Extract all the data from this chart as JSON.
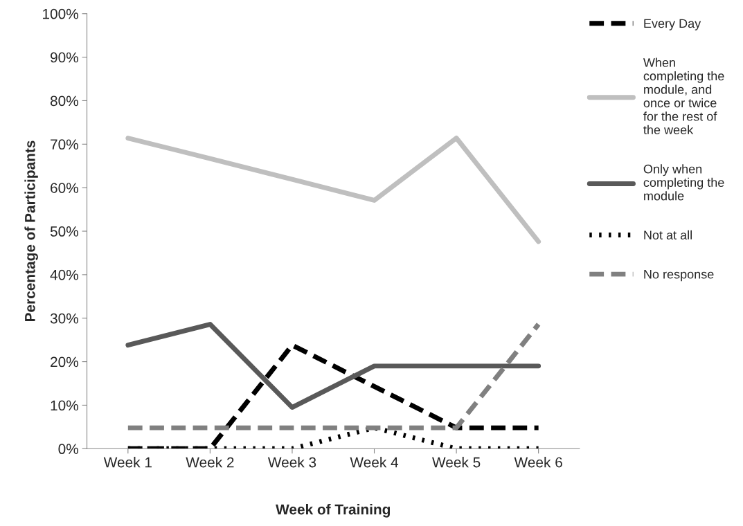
{
  "chart_data": {
    "type": "line",
    "xlabel": "Week of Training",
    "ylabel": "Percentage of Participants",
    "categories": [
      "Week 1",
      "Week 2",
      "Week 3",
      "Week 4",
      "Week 5",
      "Week 6"
    ],
    "series": [
      {
        "name": "Every Day",
        "color": "#000000",
        "line_style": "dashed",
        "values": [
          0,
          0,
          23.8,
          14.3,
          4.8,
          4.8
        ]
      },
      {
        "name": "When\ncompleting the\nmodule, and\nonce or twice\nfor the rest of\nthe week",
        "color": "#bfbfbf",
        "line_style": "solid",
        "values": [
          71.4,
          66.7,
          61.9,
          57.1,
          71.4,
          47.6
        ]
      },
      {
        "name": "Only when\ncompleting the\nmodule",
        "color": "#595959",
        "line_style": "solid",
        "values": [
          23.8,
          28.6,
          9.5,
          19.0,
          19.0,
          19.0
        ]
      },
      {
        "name": "Not at all",
        "color": "#000000",
        "line_style": "dotted",
        "values": [
          0,
          0,
          0,
          4.8,
          0,
          0
        ]
      },
      {
        "name": "No response",
        "color": "#808080",
        "line_style": "dashed",
        "values": [
          4.8,
          4.8,
          4.8,
          4.8,
          4.8,
          28.6
        ]
      }
    ],
    "ylim": [
      0,
      100
    ],
    "yticks": [
      {
        "value": 0,
        "label": "0%"
      },
      {
        "value": 10,
        "label": "10%"
      },
      {
        "value": 20,
        "label": "20%"
      },
      {
        "value": 30,
        "label": "30%"
      },
      {
        "value": 40,
        "label": "40%"
      },
      {
        "value": 50,
        "label": "50%"
      },
      {
        "value": 60,
        "label": "60%"
      },
      {
        "value": 70,
        "label": "70%"
      },
      {
        "value": 80,
        "label": "80%"
      },
      {
        "value": 90,
        "label": "90%"
      },
      {
        "value": 100,
        "label": "100%"
      }
    ],
    "grid": false,
    "legend": "right",
    "marker": "none"
  }
}
